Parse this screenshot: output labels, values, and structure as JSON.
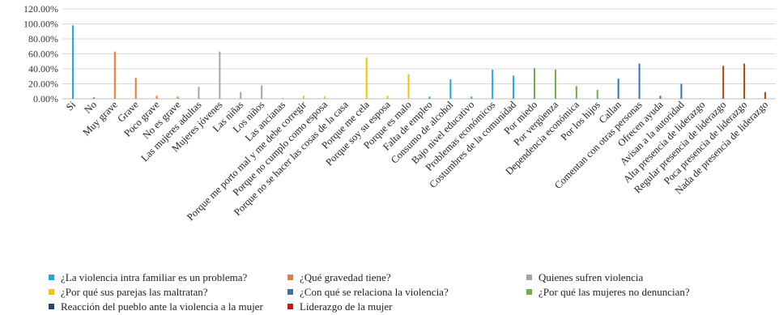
{
  "chart_data": {
    "type": "bar",
    "title": "",
    "ylim": [
      0,
      120
    ],
    "y_ticks": [
      "0.00%",
      "20.00%",
      "40.00%",
      "60.00%",
      "80.00%",
      "100.00%",
      "120.00%"
    ],
    "grid": true,
    "legend_placement": "bottom",
    "colors": {
      "problem": "#1ba7e8",
      "severity": "#ee7c30",
      "victims": "#a5a5a5",
      "why": "#ffc000",
      "related": "#2e75b6",
      "report": "#70ad47",
      "reaction": "#264478",
      "leadership": "#ff0000",
      "leadership_bars": "#9e480e"
    },
    "series": [
      {
        "key": "problem",
        "name": "¿La violencia intra familiar es un problema?",
        "color_key": "problem",
        "points": [
          {
            "label": "Si",
            "value": 98
          },
          {
            "label": "No",
            "value": 2
          }
        ]
      },
      {
        "key": "severity",
        "name": "¿Qué gravedad tiene?",
        "color_key": "severity",
        "points": [
          {
            "label": "Muy grave",
            "value": 63
          },
          {
            "label": "Grave",
            "value": 28
          },
          {
            "label": "Poco grave",
            "value": 4
          },
          {
            "label": "No es grave",
            "value": 3
          }
        ]
      },
      {
        "key": "victims",
        "name": "Quienes sufren violencia",
        "color_key": "victims",
        "points": [
          {
            "label": "Las mujeres adultas",
            "value": 16
          },
          {
            "label": "Mujeres jóvenes",
            "value": 63
          },
          {
            "label": "Las niñas",
            "value": 9
          },
          {
            "label": "Los niños",
            "value": 18
          },
          {
            "label": "Las ancianas",
            "value": 1
          }
        ]
      },
      {
        "key": "why",
        "name": "¿Por qué sus parejas las maltratan?",
        "color_key": "why",
        "points": [
          {
            "label": "Porque me porto mal y me debe corregir",
            "value": 4
          },
          {
            "label": "Porque no cumplo como esposa",
            "value": 3
          },
          {
            "label": "Porque no se hacer las cosas de la casa",
            "value": 0
          },
          {
            "label": "Porque me cela",
            "value": 55
          },
          {
            "label": "Porque soy su esposa",
            "value": 4
          },
          {
            "label": "Porque es malo",
            "value": 33
          }
        ]
      },
      {
        "key": "related",
        "name": "¿Con qué se relaciona la violencia?",
        "color_key": "problem",
        "points": [
          {
            "label": "Falta de empleo",
            "value": 3
          },
          {
            "label": "Consumo de alcohol",
            "value": 26
          },
          {
            "label": "Bajo nivel educativo",
            "value": 3
          },
          {
            "label": "Problemas económicos",
            "value": 39
          },
          {
            "label": "Costumbres de la comunidad",
            "value": 31
          }
        ]
      },
      {
        "key": "report",
        "name": "¿Por qué las mujeres no denuncian?",
        "color_key": "report",
        "points": [
          {
            "label": "Por miedo",
            "value": 41
          },
          {
            "label": "Por vergüenza",
            "value": 39
          },
          {
            "label": "Dependencia económica",
            "value": 17
          },
          {
            "label": "Por los hijos",
            "value": 12
          }
        ]
      },
      {
        "key": "reaction",
        "name": "Reacción del pueblo ante la violencia a la mujer",
        "color_key": "related",
        "points": [
          {
            "label": "Callan",
            "value": 27
          },
          {
            "label": "Comentan con otras personas",
            "value": 47
          },
          {
            "label": "Ofrecen ayuda",
            "value": 4
          },
          {
            "label": "Avisan a la autoridad",
            "value": 20
          }
        ]
      },
      {
        "key": "leadership",
        "name": "Liderazgo de la mujer",
        "color_key": "leadership_bars",
        "points": [
          {
            "label": "Alta presencia de liderazgo",
            "value": 0
          },
          {
            "label": "Regular presencia de liderazgo",
            "value": 44
          },
          {
            "label": "Poca presencia de liderazgo",
            "value": 47
          },
          {
            "label": "Nada de presencia de liderazgo",
            "value": 9
          }
        ]
      }
    ],
    "legend": [
      {
        "name": "¿La violencia intra familiar es un problema?",
        "color_key": "problem"
      },
      {
        "name": "¿Qué gravedad tiene?",
        "color_key": "severity"
      },
      {
        "name": "Quienes sufren violencia",
        "color_key": "victims"
      },
      {
        "name": "¿Por qué sus parejas las maltratan?",
        "color_key": "why"
      },
      {
        "name": "¿Con qué se relaciona la violencia?",
        "color_key": "related"
      },
      {
        "name": "¿Por qué las mujeres no denuncian?",
        "color_key": "report"
      },
      {
        "name": "Reacción del pueblo ante la violencia a la mujer",
        "color_key": "reaction"
      },
      {
        "name": "Liderazgo de la mujer",
        "color_key": "leadership"
      }
    ]
  }
}
